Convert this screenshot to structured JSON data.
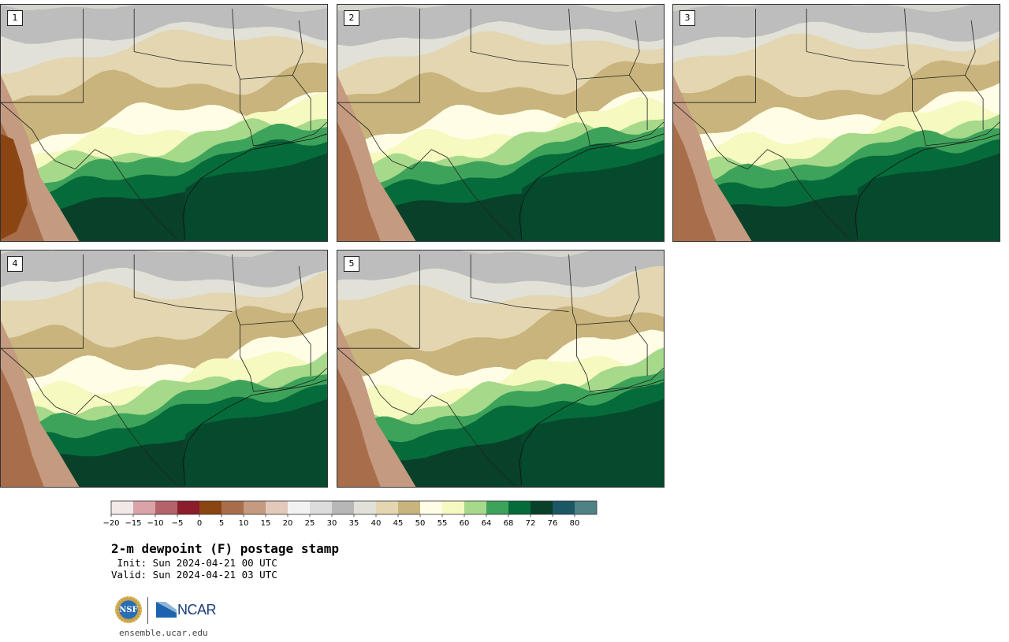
{
  "panels": [
    {
      "label": "1",
      "variant": 0
    },
    {
      "label": "2",
      "variant": 1
    },
    {
      "label": "3",
      "variant": 2
    },
    {
      "label": "4",
      "variant": 3
    },
    {
      "label": "5",
      "variant": 4
    }
  ],
  "colorbar": {
    "ticks": [
      "−20",
      "−15",
      "−10",
      "−5",
      "0",
      "5",
      "10",
      "15",
      "20",
      "25",
      "30",
      "35",
      "40",
      "45",
      "50",
      "55",
      "60",
      "64",
      "68",
      "72",
      "76",
      "80"
    ],
    "colors": [
      "#f1e8e8",
      "#d9a3a7",
      "#b5636a",
      "#8c1d2a",
      "#8b4513",
      "#a86e4b",
      "#c49a80",
      "#e3c9ba",
      "#f2f2f2",
      "#dcdcdc",
      "#b7b7b7",
      "#e1e1d7",
      "#e3d6b0",
      "#c8b47c",
      "#fffde6",
      "#f6f9c0",
      "#a6d98a",
      "#3ea35a",
      "#066b3a",
      "#08402a",
      "#1b5764",
      "#4f8285"
    ]
  },
  "title": "2-m dewpoint (F) postage stamp",
  "init": " Init: Sun 2024-04-21 00 UTC",
  "valid": "Valid: Sun 2024-04-21 03 UTC",
  "logo": {
    "nsf": "NSF",
    "ncar": "NCAR"
  },
  "site": "ensemble.ucar.edu"
}
